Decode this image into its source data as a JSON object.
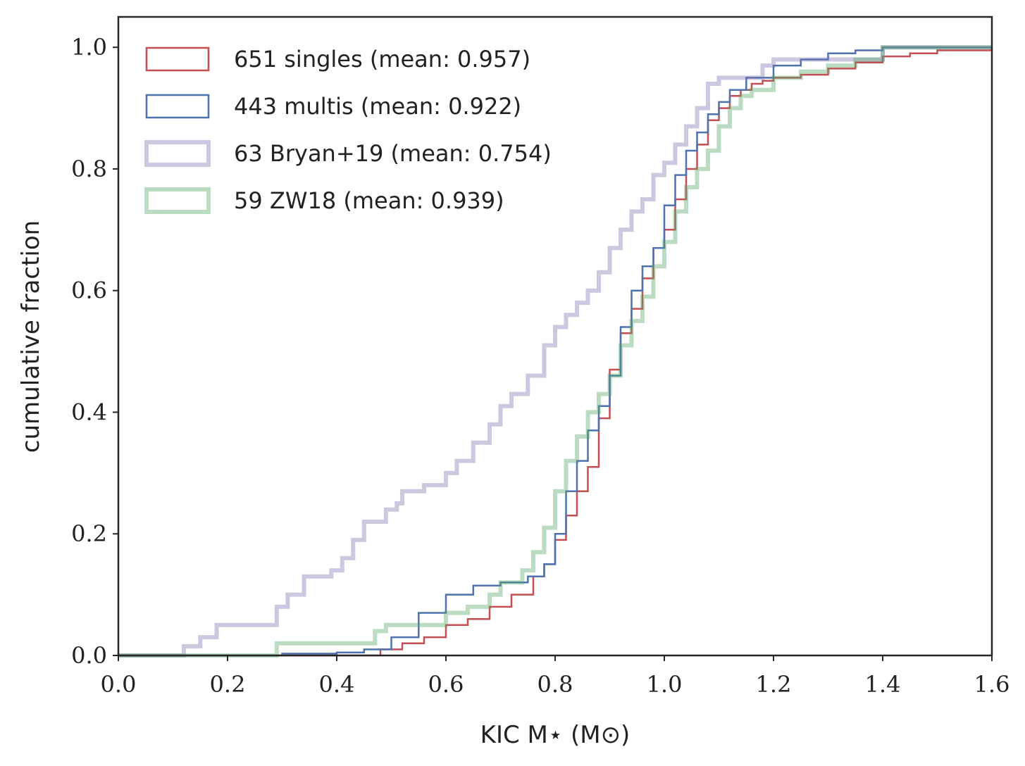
{
  "chart_data": {
    "type": "line",
    "step": true,
    "title": "",
    "xlabel": "KIC M⋆ (M⊙)",
    "ylabel": "cumulative fraction",
    "xlim": [
      0.0,
      1.6
    ],
    "ylim": [
      0.0,
      1.05
    ],
    "xticks": [
      "0.0",
      "0.2",
      "0.4",
      "0.6",
      "0.8",
      "1.0",
      "1.2",
      "1.4",
      "1.6"
    ],
    "yticks": [
      "0.0",
      "0.2",
      "0.4",
      "0.6",
      "0.8",
      "1.0"
    ],
    "legend_position": "top-left",
    "grid": false,
    "series": [
      {
        "name": "651 singles (mean: 0.957)",
        "color": "#c44e52",
        "weight": "thin",
        "x": [
          0.0,
          0.42,
          0.48,
          0.52,
          0.56,
          0.6,
          0.64,
          0.68,
          0.72,
          0.76,
          0.78,
          0.8,
          0.82,
          0.84,
          0.86,
          0.88,
          0.9,
          0.92,
          0.94,
          0.96,
          0.98,
          1.0,
          1.02,
          1.04,
          1.06,
          1.08,
          1.1,
          1.12,
          1.14,
          1.16,
          1.18,
          1.2,
          1.25,
          1.3,
          1.35,
          1.4,
          1.45,
          1.5,
          1.6
        ],
        "y": [
          0.0,
          0.0,
          0.01,
          0.02,
          0.03,
          0.05,
          0.06,
          0.08,
          0.1,
          0.13,
          0.15,
          0.19,
          0.23,
          0.27,
          0.31,
          0.39,
          0.47,
          0.53,
          0.57,
          0.62,
          0.67,
          0.7,
          0.75,
          0.8,
          0.84,
          0.88,
          0.9,
          0.92,
          0.93,
          0.94,
          0.945,
          0.95,
          0.955,
          0.965,
          0.975,
          0.985,
          0.99,
          0.995,
          1.0
        ]
      },
      {
        "name": "443 multis (mean: 0.922)",
        "color": "#4c72b0",
        "weight": "thin",
        "x": [
          0.0,
          0.15,
          0.3,
          0.4,
          0.45,
          0.5,
          0.55,
          0.6,
          0.65,
          0.7,
          0.75,
          0.78,
          0.8,
          0.82,
          0.84,
          0.86,
          0.88,
          0.9,
          0.92,
          0.94,
          0.96,
          0.98,
          1.0,
          1.02,
          1.04,
          1.06,
          1.08,
          1.1,
          1.12,
          1.15,
          1.2,
          1.25,
          1.3,
          1.35,
          1.4,
          1.5,
          1.6
        ],
        "y": [
          0.0,
          0.0,
          0.003,
          0.005,
          0.01,
          0.03,
          0.07,
          0.1,
          0.115,
          0.12,
          0.13,
          0.15,
          0.2,
          0.27,
          0.32,
          0.37,
          0.41,
          0.46,
          0.54,
          0.6,
          0.64,
          0.67,
          0.74,
          0.79,
          0.83,
          0.86,
          0.89,
          0.91,
          0.93,
          0.95,
          0.97,
          0.98,
          0.99,
          0.995,
          1.0,
          1.0,
          1.0
        ]
      },
      {
        "name": "63 Bryan+19 (mean: 0.754)",
        "color": "#8172b2",
        "weight": "thick",
        "opacity": 0.4,
        "x": [
          0.0,
          0.12,
          0.15,
          0.18,
          0.29,
          0.31,
          0.34,
          0.39,
          0.41,
          0.43,
          0.45,
          0.49,
          0.51,
          0.52,
          0.56,
          0.6,
          0.62,
          0.65,
          0.68,
          0.7,
          0.72,
          0.75,
          0.78,
          0.8,
          0.82,
          0.84,
          0.86,
          0.88,
          0.9,
          0.92,
          0.94,
          0.96,
          0.98,
          1.0,
          1.02,
          1.04,
          1.06,
          1.08,
          1.1,
          1.18,
          1.2,
          1.4,
          1.6
        ],
        "y": [
          0.0,
          0.015,
          0.03,
          0.05,
          0.08,
          0.1,
          0.13,
          0.14,
          0.16,
          0.19,
          0.22,
          0.24,
          0.25,
          0.27,
          0.28,
          0.3,
          0.32,
          0.35,
          0.38,
          0.41,
          0.43,
          0.46,
          0.51,
          0.54,
          0.56,
          0.58,
          0.6,
          0.63,
          0.67,
          0.7,
          0.73,
          0.75,
          0.79,
          0.81,
          0.84,
          0.87,
          0.9,
          0.94,
          0.95,
          0.97,
          0.98,
          1.0,
          1.0
        ]
      },
      {
        "name": "59 ZW18 (mean: 0.939)",
        "color": "#55a868",
        "weight": "thick",
        "opacity": 0.4,
        "x": [
          0.0,
          0.29,
          0.47,
          0.49,
          0.6,
          0.64,
          0.68,
          0.7,
          0.74,
          0.76,
          0.78,
          0.8,
          0.82,
          0.84,
          0.86,
          0.88,
          0.9,
          0.92,
          0.94,
          0.96,
          0.98,
          1.0,
          1.02,
          1.04,
          1.06,
          1.08,
          1.1,
          1.12,
          1.14,
          1.16,
          1.2,
          1.25,
          1.3,
          1.35,
          1.4,
          1.6
        ],
        "y": [
          0.0,
          0.02,
          0.04,
          0.05,
          0.07,
          0.08,
          0.1,
          0.12,
          0.14,
          0.17,
          0.21,
          0.27,
          0.32,
          0.36,
          0.4,
          0.43,
          0.46,
          0.51,
          0.55,
          0.59,
          0.64,
          0.68,
          0.73,
          0.77,
          0.8,
          0.83,
          0.87,
          0.9,
          0.92,
          0.93,
          0.95,
          0.96,
          0.97,
          0.98,
          1.0,
          1.0
        ]
      }
    ]
  }
}
